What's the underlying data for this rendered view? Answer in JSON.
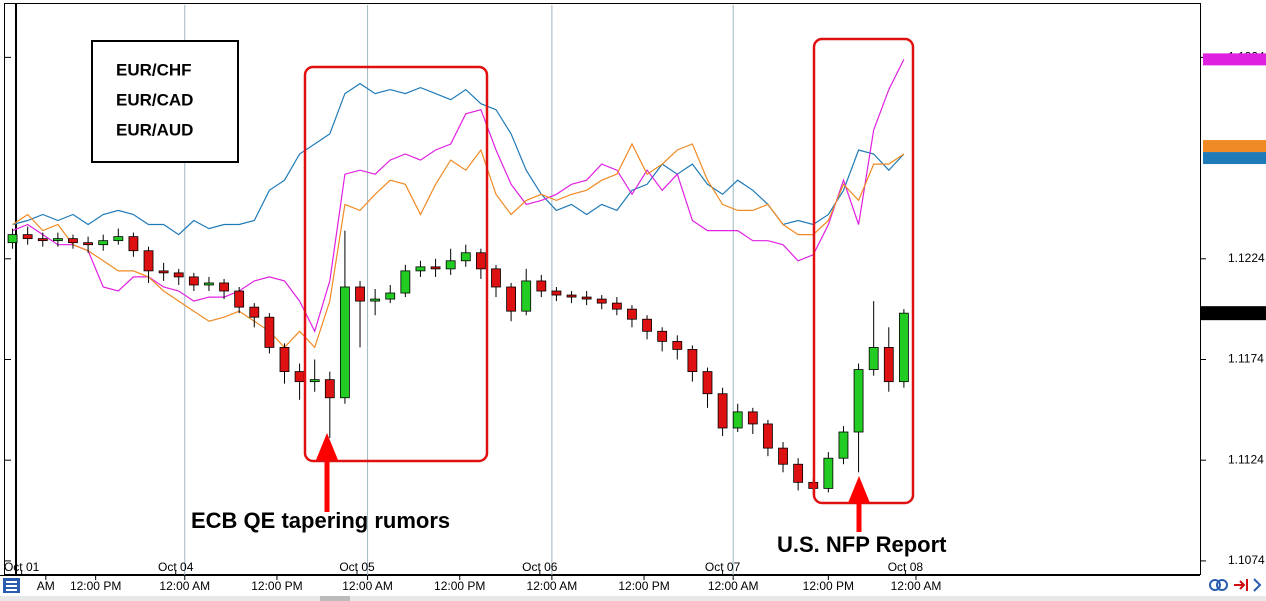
{
  "chart_data": {
    "type": "candlestick",
    "ylim": [
      1.1068,
      1.135
    ],
    "yticks": [
      1.1324,
      1.1224,
      1.1174,
      1.1124,
      1.1074
    ],
    "xlim": [
      -0.5,
      78.6
    ],
    "xticks": [
      {
        "value": 2.2,
        "label": "AM"
      },
      {
        "value": 5.5,
        "label": "12:00 PM"
      },
      {
        "value": 11.4,
        "label": "12:00 AM"
      },
      {
        "value": 17.5,
        "label": "12:00 PM"
      },
      {
        "value": 23.5,
        "label": "12:00 AM"
      },
      {
        "value": 29.6,
        "label": "12:00 PM"
      },
      {
        "value": 35.7,
        "label": "12:00 AM"
      },
      {
        "value": 41.8,
        "label": "12:00 PM"
      },
      {
        "value": 47.7,
        "label": "12:00 AM"
      },
      {
        "value": 54.0,
        "label": "12:00 PM"
      },
      {
        "value": 59.8,
        "label": "12:00 AM"
      }
    ],
    "date_ticks": [
      {
        "value": 0.6,
        "label": "Oct 01"
      },
      {
        "value": 10.8,
        "label": "Oct 04"
      },
      {
        "value": 22.8,
        "label": "Oct 05"
      },
      {
        "value": 34.9,
        "label": "Oct 06"
      },
      {
        "value": 47.0,
        "label": "Oct 07"
      },
      {
        "value": 59.1,
        "label": "Oct 08"
      }
    ],
    "up_color": "#22cc22",
    "down_color": "#dd1111",
    "ohlc": {
      "open": [
        1.1232,
        1.1236,
        1.1234,
        1.1233,
        1.1234,
        1.1232,
        1.1231,
        1.1233,
        1.1235,
        1.1228,
        1.1218,
        1.1217,
        1.1215,
        1.1211,
        1.1212,
        1.1208,
        1.12,
        1.1195,
        1.118,
        1.1168,
        1.1163,
        1.1164,
        1.1155,
        1.121,
        1.1203,
        1.1204,
        1.1207,
        1.1218,
        1.122,
        1.1219,
        1.1223,
        1.1227,
        1.1219,
        1.121,
        1.1198,
        1.1213,
        1.1208,
        1.1206,
        1.1205,
        1.1204,
        1.1202,
        1.1199,
        1.1194,
        1.1188,
        1.1183,
        1.1179,
        1.1168,
        1.1157,
        1.114,
        1.1148,
        1.1142,
        1.113,
        1.1122,
        1.1113,
        1.111,
        1.1125,
        1.1138,
        1.1169,
        1.118,
        1.1163
      ],
      "high": [
        1.1239,
        1.124,
        1.1237,
        1.1237,
        1.1236,
        1.1235,
        1.1236,
        1.1239,
        1.1237,
        1.123,
        1.1222,
        1.1219,
        1.1217,
        1.1215,
        1.1214,
        1.121,
        1.1202,
        1.1197,
        1.1182,
        1.1172,
        1.1174,
        1.1168,
        1.1238,
        1.1213,
        1.1209,
        1.1211,
        1.1221,
        1.1223,
        1.1224,
        1.1229,
        1.1231,
        1.1229,
        1.1221,
        1.1212,
        1.1219,
        1.1216,
        1.121,
        1.1208,
        1.1208,
        1.1206,
        1.1205,
        1.1201,
        1.1196,
        1.119,
        1.1186,
        1.1181,
        1.117,
        1.116,
        1.1152,
        1.115,
        1.1144,
        1.1133,
        1.1125,
        1.1115,
        1.1128,
        1.1141,
        1.1172,
        1.1203,
        1.119,
        1.1199
      ],
      "low": [
        1.1229,
        1.1231,
        1.123,
        1.123,
        1.1229,
        1.1227,
        1.1228,
        1.1231,
        1.1225,
        1.1212,
        1.1213,
        1.1211,
        1.1208,
        1.1208,
        1.1204,
        1.1197,
        1.119,
        1.1177,
        1.1162,
        1.1154,
        1.1158,
        1.1135,
        1.1152,
        1.118,
        1.1196,
        1.1202,
        1.1205,
        1.1215,
        1.1215,
        1.1216,
        1.122,
        1.1214,
        1.1205,
        1.1193,
        1.1196,
        1.1205,
        1.1203,
        1.1202,
        1.1201,
        1.1199,
        1.1196,
        1.119,
        1.1184,
        1.1178,
        1.1174,
        1.1163,
        1.115,
        1.1136,
        1.1138,
        1.1137,
        1.1126,
        1.1118,
        1.1109,
        1.1107,
        1.1108,
        1.1122,
        1.1118,
        1.1166,
        1.1158,
        1.116
      ],
      "close": [
        1.1236,
        1.1234,
        1.1233,
        1.1234,
        1.1232,
        1.1231,
        1.1233,
        1.1235,
        1.1228,
        1.1218,
        1.1217,
        1.1215,
        1.1211,
        1.1212,
        1.1208,
        1.12,
        1.1195,
        1.118,
        1.1168,
        1.1163,
        1.1164,
        1.1155,
        1.121,
        1.1203,
        1.1204,
        1.1207,
        1.1218,
        1.122,
        1.1219,
        1.1223,
        1.1227,
        1.1219,
        1.121,
        1.1198,
        1.1213,
        1.1208,
        1.1206,
        1.1205,
        1.1204,
        1.1202,
        1.1199,
        1.1194,
        1.1188,
        1.1183,
        1.1179,
        1.1168,
        1.1157,
        1.114,
        1.1148,
        1.1142,
        1.113,
        1.1122,
        1.1113,
        1.111,
        1.1125,
        1.1138,
        1.1169,
        1.118,
        1.1163,
        1.1197
      ]
    },
    "last_price": 1.1197,
    "series": [
      {
        "name": "EUR/CHF",
        "color": "#1f7ab8",
        "values": [
          1.1241,
          1.1243,
          1.1246,
          1.1243,
          1.1246,
          1.1241,
          1.1246,
          1.1248,
          1.1246,
          1.1241,
          1.1241,
          1.1236,
          1.1243,
          1.1239,
          1.1241,
          1.1241,
          1.1243,
          1.1258,
          1.1263,
          1.1276,
          1.1281,
          1.1286,
          1.1306,
          1.1311,
          1.1306,
          1.1308,
          1.1306,
          1.1309,
          1.1306,
          1.1303,
          1.1308,
          1.1301,
          1.1298,
          1.1286,
          1.1268,
          1.1256,
          1.1248,
          1.1251,
          1.1246,
          1.1251,
          1.1248,
          1.1258,
          1.1261,
          1.1271,
          1.1266,
          1.1271,
          1.1261,
          1.1256,
          1.1263,
          1.1258,
          1.1251,
          1.1241,
          1.1243,
          1.1241,
          1.1246,
          1.1258,
          1.1278,
          1.1276,
          1.1268,
          1.1276
        ]
      },
      {
        "name": "EUR/CAD",
        "color": "#e020e0",
        "values": [
          1.1238,
          1.1241,
          1.1236,
          1.1231,
          1.1231,
          1.1228,
          1.121,
          1.1208,
          1.1215,
          1.1215,
          1.121,
          1.1208,
          1.1203,
          1.1205,
          1.1205,
          1.1208,
          1.1213,
          1.1215,
          1.1213,
          1.1203,
          1.1188,
          1.1213,
          1.1266,
          1.1268,
          1.1266,
          1.1273,
          1.1276,
          1.1273,
          1.1278,
          1.1281,
          1.1296,
          1.1298,
          1.1278,
          1.1261,
          1.1251,
          1.1253,
          1.1256,
          1.1261,
          1.1263,
          1.1271,
          1.1268,
          1.1256,
          1.1268,
          1.1258,
          1.1266,
          1.1243,
          1.1238,
          1.1238,
          1.1238,
          1.1233,
          1.1233,
          1.1231,
          1.1223,
          1.1226,
          1.1241,
          1.1263,
          1.1241,
          1.1288,
          1.1308,
          1.1323
        ]
      },
      {
        "name": "EUR/AUD",
        "color": "#f08a24",
        "values": [
          1.1241,
          1.1246,
          1.1238,
          1.1241,
          1.1231,
          1.1228,
          1.1223,
          1.1218,
          1.1218,
          1.1215,
          1.1208,
          1.1203,
          1.1198,
          1.1193,
          1.1195,
          1.1198,
          1.1193,
          1.1188,
          1.118,
          1.1188,
          1.118,
          1.1203,
          1.1251,
          1.1248,
          1.1256,
          1.1263,
          1.1261,
          1.1246,
          1.1261,
          1.1273,
          1.1268,
          1.1278,
          1.1256,
          1.1246,
          1.1253,
          1.1256,
          1.1253,
          1.1256,
          1.1258,
          1.1263,
          1.1266,
          1.1281,
          1.1266,
          1.1271,
          1.1278,
          1.1281,
          1.1263,
          1.1251,
          1.1248,
          1.1248,
          1.1251,
          1.1241,
          1.1236,
          1.1236,
          1.1243,
          1.1261,
          1.1253,
          1.1271,
          1.1271,
          1.1276
        ]
      }
    ],
    "annotations": [
      "ECB QE tapering rumors",
      "U.S. NFP Report"
    ]
  }
}
